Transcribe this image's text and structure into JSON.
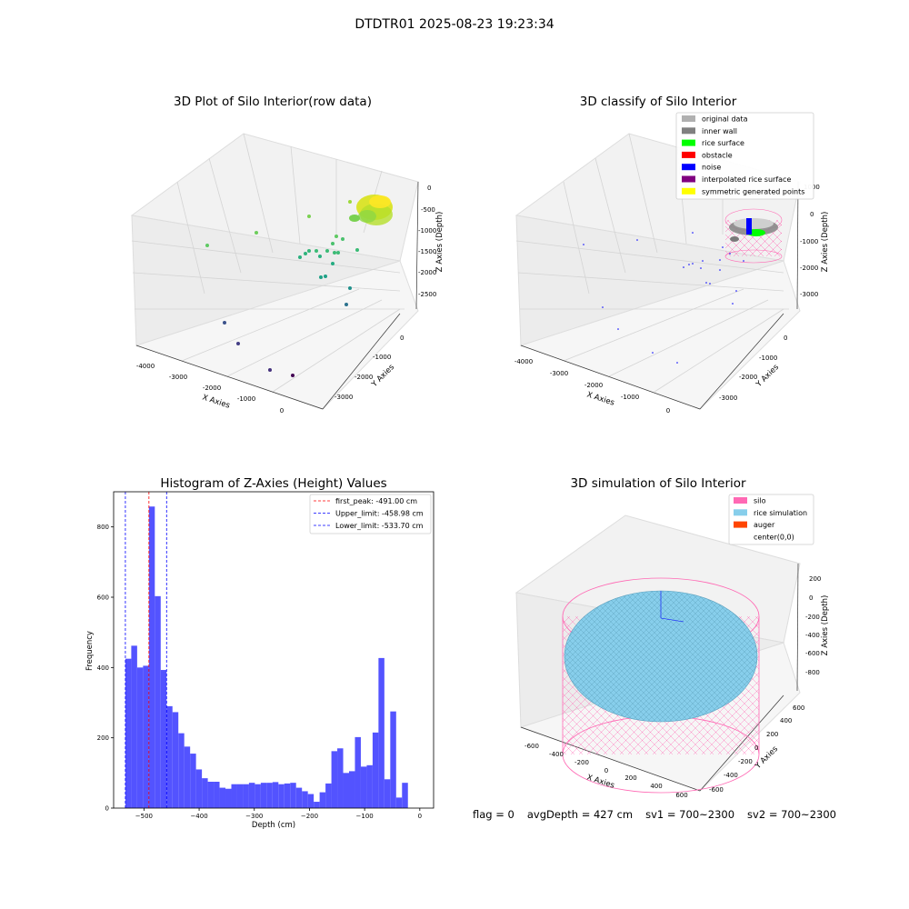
{
  "figure_title": "DTDTR01 2025-08-23 19:23:34",
  "footer": {
    "flag": "flag = 0",
    "avg_depth": "avgDepth = 427 cm",
    "sv1": "sv1 = 700~2300",
    "sv2": "sv2 = 700~2300"
  },
  "chart_data": [
    {
      "type": "scatter",
      "title": "3D Plot of Silo Interior(row data)",
      "xlabel": "X Axies",
      "ylabel": "Y Axies",
      "zlabel": "Z Axies (Depth)",
      "x_ticks": [
        "-4000",
        "-3000",
        "-2000",
        "-1000",
        "0"
      ],
      "y_ticks": [
        "0",
        "-1000",
        "-2000",
        "-3000"
      ],
      "z_ticks": [
        "0",
        "-500",
        "-1000",
        "-1500",
        "-2000",
        "-2500"
      ],
      "grid": true,
      "colormap": "viridis"
    },
    {
      "type": "scatter",
      "title": "3D classify of Silo Interior",
      "xlabel": "X Axies",
      "ylabel": "Y Axies",
      "zlabel": "Z Axies (Depth)",
      "x_ticks": [
        "-4000",
        "-3000",
        "-2000",
        "-1000",
        "0"
      ],
      "y_ticks": [
        "0",
        "-1000",
        "-2000",
        "-3000"
      ],
      "z_ticks": [
        "1000",
        "0",
        "-1000",
        "-2000",
        "-3000"
      ],
      "grid": true,
      "legend_position": "top-right",
      "legend": [
        {
          "label": "original data",
          "color": "#b0b0b0"
        },
        {
          "label": "inner wall",
          "color": "#808080"
        },
        {
          "label": "rice surface",
          "color": "#00ff00"
        },
        {
          "label": "obstacle",
          "color": "#ff0000"
        },
        {
          "label": "noise",
          "color": "#0000ff"
        },
        {
          "label": "interpolated rice surface",
          "color": "#800080"
        },
        {
          "label": "symmetric generated points",
          "color": "#ffff00"
        }
      ]
    },
    {
      "type": "bar",
      "title": "Histogram of Z-Axies (Height) Values",
      "xlabel": "Depth (cm)",
      "ylabel": "Frequency",
      "xlim": [
        -555,
        25
      ],
      "ylim": [
        0,
        900
      ],
      "x_ticks": [
        -500,
        -400,
        -300,
        -200,
        -100,
        0
      ],
      "y_ticks": [
        0,
        200,
        400,
        600,
        800
      ],
      "bin_start": -533.7,
      "bin_width": 10.67,
      "bar_color": "#5050ff",
      "values": [
        425,
        462,
        400,
        405,
        858,
        603,
        393,
        290,
        273,
        213,
        175,
        155,
        110,
        85,
        75,
        75,
        58,
        55,
        68,
        68,
        68,
        72,
        68,
        72,
        72,
        74,
        68,
        70,
        72,
        58,
        48,
        40,
        18,
        45,
        70,
        162,
        170,
        100,
        105,
        202,
        118,
        122,
        215,
        427,
        82,
        275,
        30,
        72
      ],
      "vlines": [
        {
          "label": "first_peak: -491.00 cm",
          "value": -491.0,
          "color": "#ff0000"
        },
        {
          "label": "Upper_limit: -458.98 cm",
          "value": -458.98,
          "color": "#0000ff"
        },
        {
          "label": "Lower_limit: -533.70 cm",
          "value": -533.7,
          "color": "#0000ff"
        }
      ],
      "legend_position": "top-right"
    },
    {
      "type": "scatter",
      "title": "3D simulation of Silo Interior",
      "xlabel": "X Axies",
      "ylabel": "Y Axies",
      "zlabel": "Z Axies (Depth)",
      "x_ticks": [
        "-600",
        "-400",
        "-200",
        "0",
        "200",
        "400",
        "600"
      ],
      "y_ticks": [
        "600",
        "400",
        "200",
        "0",
        "-200",
        "-400",
        "-600"
      ],
      "z_ticks": [
        "200",
        "0",
        "-200",
        "-400",
        "-600",
        "-800"
      ],
      "grid": true,
      "legend_position": "top-right",
      "legend": [
        {
          "label": "silo",
          "color": "#ff69b4"
        },
        {
          "label": "rice simulation",
          "color": "#87ceeb"
        },
        {
          "label": "auger",
          "color": "#ff4500"
        },
        {
          "label": "center(0,0)",
          "color": "none"
        }
      ]
    }
  ]
}
